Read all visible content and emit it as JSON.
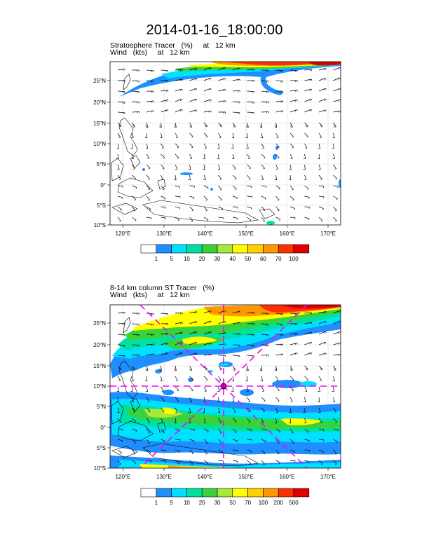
{
  "title": "2014-01-16_18:00:00",
  "panels": [
    {
      "title_line1": "Stratosphere Tracer   (%)     at   12 km",
      "title_line2": "Wind   (kts)     at   12 km",
      "colorbar_labels": [
        "1",
        "5",
        "10",
        "20",
        "30",
        "40",
        "50",
        "60",
        "70",
        "100"
      ]
    },
    {
      "title_line1": "8-14 km column ST Tracer   (%)",
      "title_line2": "Wind   (kts)     at   12 km",
      "colorbar_labels": [
        "1",
        "5",
        "10",
        "20",
        "30",
        "50",
        "70",
        "100",
        "200",
        "500"
      ]
    }
  ],
  "map": {
    "lon_labels": [
      "120°E",
      "130°E",
      "140°E",
      "150°E",
      "160°E",
      "170°E"
    ],
    "lat_labels": [
      "25°N",
      "20°N",
      "15°N",
      "10°N",
      "5°N",
      "0°",
      "5°S",
      "10°S"
    ]
  },
  "colors": {
    "scale": [
      "#ffffff",
      "#1f8fff",
      "#00e0ff",
      "#00e0a0",
      "#3ad23a",
      "#a8e83a",
      "#ffff00",
      "#ffd000",
      "#ff9800",
      "#ff3000",
      "#e00000"
    ],
    "marker": "#ff00ff"
  }
}
